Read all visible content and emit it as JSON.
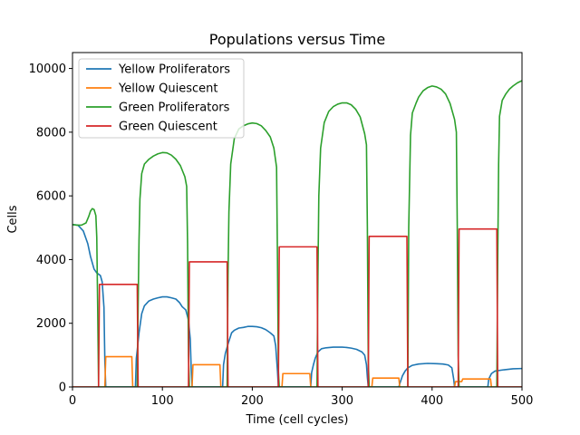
{
  "chart_data": {
    "type": "line",
    "title": "Populations versus Time",
    "xlabel": "Time (cell cycles)",
    "ylabel": "Cells",
    "xlim": [
      0,
      500
    ],
    "ylim": [
      0,
      10500
    ],
    "xticks": [
      0,
      100,
      200,
      300,
      400,
      500
    ],
    "yticks": [
      0,
      2000,
      4000,
      6000,
      8000,
      10000
    ],
    "grid": false,
    "legend_position": "top-left",
    "series": [
      {
        "name": "Yellow Proliferators",
        "color": "#1f77b4",
        "points": [
          [
            0,
            5100
          ],
          [
            6,
            5080
          ],
          [
            12,
            4900
          ],
          [
            17,
            4500
          ],
          [
            20,
            4100
          ],
          [
            24,
            3700
          ],
          [
            27,
            3580
          ],
          [
            29,
            3540
          ],
          [
            31,
            3500
          ],
          [
            33,
            3300
          ],
          [
            35,
            2500
          ],
          [
            36,
            800
          ],
          [
            37,
            0
          ],
          [
            70,
            0
          ],
          [
            71,
            900
          ],
          [
            72,
            1150
          ],
          [
            74,
            1700
          ],
          [
            77,
            2300
          ],
          [
            80,
            2550
          ],
          [
            85,
            2700
          ],
          [
            90,
            2760
          ],
          [
            95,
            2800
          ],
          [
            100,
            2830
          ],
          [
            105,
            2830
          ],
          [
            110,
            2800
          ],
          [
            115,
            2760
          ],
          [
            119,
            2650
          ],
          [
            122,
            2520
          ],
          [
            126,
            2420
          ],
          [
            129,
            2100
          ],
          [
            131,
            1500
          ],
          [
            132,
            600
          ],
          [
            133,
            0
          ],
          [
            167,
            0
          ],
          [
            168,
            700
          ],
          [
            170,
            1050
          ],
          [
            173,
            1350
          ],
          [
            177,
            1700
          ],
          [
            180,
            1780
          ],
          [
            185,
            1850
          ],
          [
            190,
            1870
          ],
          [
            195,
            1900
          ],
          [
            200,
            1900
          ],
          [
            205,
            1890
          ],
          [
            210,
            1860
          ],
          [
            215,
            1800
          ],
          [
            220,
            1700
          ],
          [
            224,
            1600
          ],
          [
            226,
            1300
          ],
          [
            228,
            500
          ],
          [
            229,
            0
          ],
          [
            265,
            0
          ],
          [
            266,
            450
          ],
          [
            268,
            700
          ],
          [
            270,
            900
          ],
          [
            273,
            1100
          ],
          [
            277,
            1200
          ],
          [
            282,
            1230
          ],
          [
            290,
            1250
          ],
          [
            300,
            1250
          ],
          [
            305,
            1240
          ],
          [
            310,
            1220
          ],
          [
            316,
            1180
          ],
          [
            322,
            1100
          ],
          [
            325,
            1000
          ],
          [
            327,
            700
          ],
          [
            328,
            300
          ],
          [
            329,
            0
          ],
          [
            363,
            0
          ],
          [
            364,
            100
          ],
          [
            367,
            350
          ],
          [
            370,
            500
          ],
          [
            373,
            600
          ],
          [
            378,
            680
          ],
          [
            385,
            720
          ],
          [
            395,
            740
          ],
          [
            405,
            730
          ],
          [
            412,
            720
          ],
          [
            418,
            690
          ],
          [
            422,
            600
          ],
          [
            424,
            250
          ],
          [
            425,
            0
          ],
          [
            462,
            0
          ],
          [
            463,
            250
          ],
          [
            466,
            420
          ],
          [
            470,
            500
          ],
          [
            480,
            540
          ],
          [
            490,
            570
          ],
          [
            500,
            580
          ]
        ]
      },
      {
        "name": "Yellow Quiescent",
        "color": "#ff7f0e",
        "points": [
          [
            0,
            0
          ],
          [
            36,
            0
          ],
          [
            37,
            950
          ],
          [
            66,
            950
          ],
          [
            67,
            0
          ],
          [
            133,
            0
          ],
          [
            134,
            700
          ],
          [
            164,
            700
          ],
          [
            165,
            0
          ],
          [
            233,
            0
          ],
          [
            234,
            420
          ],
          [
            264,
            420
          ],
          [
            265,
            0
          ],
          [
            333,
            0
          ],
          [
            334,
            280
          ],
          [
            363,
            280
          ],
          [
            364,
            0
          ],
          [
            425,
            0
          ],
          [
            426,
            170
          ],
          [
            433,
            170
          ],
          [
            434,
            250
          ],
          [
            465,
            250
          ],
          [
            466,
            0
          ],
          [
            500,
            0
          ]
        ]
      },
      {
        "name": "Green Proliferators",
        "color": "#2ca02c",
        "points": [
          [
            0,
            5100
          ],
          [
            5,
            5080
          ],
          [
            10,
            5080
          ],
          [
            15,
            5150
          ],
          [
            18,
            5350
          ],
          [
            20,
            5520
          ],
          [
            22,
            5600
          ],
          [
            24,
            5570
          ],
          [
            26,
            5380
          ],
          [
            27,
            4700
          ],
          [
            28,
            2500
          ],
          [
            29,
            0
          ],
          [
            72,
            0
          ],
          [
            73,
            2500
          ],
          [
            74,
            4600
          ],
          [
            75,
            5900
          ],
          [
            77,
            6700
          ],
          [
            80,
            7000
          ],
          [
            85,
            7150
          ],
          [
            90,
            7250
          ],
          [
            95,
            7320
          ],
          [
            100,
            7360
          ],
          [
            105,
            7350
          ],
          [
            110,
            7280
          ],
          [
            115,
            7150
          ],
          [
            120,
            6950
          ],
          [
            125,
            6600
          ],
          [
            127,
            6300
          ],
          [
            128,
            4500
          ],
          [
            129,
            1000
          ],
          [
            130,
            0
          ],
          [
            172,
            0
          ],
          [
            173,
            3500
          ],
          [
            174,
            5500
          ],
          [
            176,
            7000
          ],
          [
            180,
            7800
          ],
          [
            185,
            8100
          ],
          [
            190,
            8200
          ],
          [
            195,
            8260
          ],
          [
            200,
            8290
          ],
          [
            205,
            8270
          ],
          [
            210,
            8200
          ],
          [
            215,
            8050
          ],
          [
            220,
            7850
          ],
          [
            224,
            7500
          ],
          [
            227,
            6900
          ],
          [
            228,
            4000
          ],
          [
            229,
            500
          ],
          [
            230,
            0
          ],
          [
            272,
            0
          ],
          [
            273,
            3500
          ],
          [
            274,
            6000
          ],
          [
            276,
            7500
          ],
          [
            280,
            8300
          ],
          [
            285,
            8650
          ],
          [
            290,
            8800
          ],
          [
            295,
            8880
          ],
          [
            300,
            8920
          ],
          [
            305,
            8920
          ],
          [
            310,
            8860
          ],
          [
            315,
            8720
          ],
          [
            320,
            8480
          ],
          [
            325,
            7950
          ],
          [
            327,
            7600
          ],
          [
            328,
            5000
          ],
          [
            329,
            800
          ],
          [
            330,
            0
          ],
          [
            373,
            0
          ],
          [
            374,
            5000
          ],
          [
            376,
            7900
          ],
          [
            378,
            8600
          ],
          [
            382,
            8900
          ],
          [
            385,
            9100
          ],
          [
            390,
            9300
          ],
          [
            395,
            9400
          ],
          [
            400,
            9450
          ],
          [
            405,
            9420
          ],
          [
            410,
            9350
          ],
          [
            415,
            9200
          ],
          [
            420,
            8900
          ],
          [
            425,
            8400
          ],
          [
            427,
            8000
          ],
          [
            428,
            5000
          ],
          [
            429,
            1000
          ],
          [
            430,
            0
          ],
          [
            472,
            0
          ],
          [
            473,
            4000
          ],
          [
            474,
            7000
          ],
          [
            475,
            8500
          ],
          [
            478,
            9000
          ],
          [
            482,
            9200
          ],
          [
            486,
            9350
          ],
          [
            490,
            9450
          ],
          [
            495,
            9550
          ],
          [
            500,
            9620
          ]
        ]
      },
      {
        "name": "Green Quiescent",
        "color": "#d62728",
        "points": [
          [
            0,
            0
          ],
          [
            29,
            0
          ],
          [
            30,
            3220
          ],
          [
            72,
            3220
          ],
          [
            73,
            0
          ],
          [
            129,
            0
          ],
          [
            130,
            3930
          ],
          [
            172,
            3930
          ],
          [
            173,
            0
          ],
          [
            229,
            0
          ],
          [
            230,
            4400
          ],
          [
            272,
            4400
          ],
          [
            273,
            0
          ],
          [
            329,
            0
          ],
          [
            330,
            4730
          ],
          [
            372,
            4730
          ],
          [
            373,
            0
          ],
          [
            429,
            0
          ],
          [
            430,
            4960
          ],
          [
            472,
            4960
          ],
          [
            473,
            0
          ],
          [
            500,
            0
          ]
        ]
      }
    ]
  }
}
